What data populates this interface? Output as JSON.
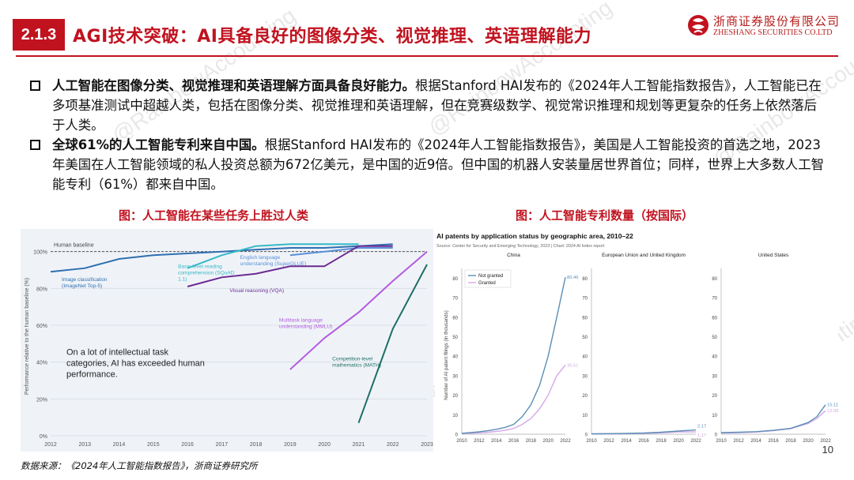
{
  "header": {
    "section_number": "2.1.3",
    "title": "AGI技术突破：AI具备良好的图像分类、视觉推理、英语理解能力",
    "logo_cn": "浙商证券股份有限公司",
    "logo_en": "ZHESHANG SECURITIES CO.LTD"
  },
  "bullets": [
    {
      "bold": "人工智能在图像分类、视觉推理和英语理解方面具备良好能力。",
      "text": "根据Stanford HAI发布的《2024年人工智能指数报告》，人工智能已在多项基准测试中超越人类，包括在图像分类、视觉推理和英语理解，但在竞赛级数学、视觉常识推理和规划等更复杂的任务上依然落后于人类。"
    },
    {
      "bold": "全球61%的人工智能专利来自中国。",
      "text": "根据Stanford HAI发布的《2024年人工智能指数报告》，美国是人工智能投资的首选之地，2023年美国在人工智能领域的私人投资总额为672亿美元，是中国的近9倍。但中国的机器人安装量居世界首位；同样，世界上大多数人工智能专利（61%）都来自中国。"
    }
  ],
  "captions": {
    "left": "图：人工智能在某些任务上胜过人类",
    "right": "图：人工智能专利数量（按国际）"
  },
  "footer": {
    "source": "数据来源：《2024年人工智能指数报告》，浙商证券研究所",
    "page_number": "10"
  },
  "watermark": "@RainbowAccounting",
  "chart_data": [
    {
      "type": "line",
      "xlabel": "",
      "ylabel": "Performance relative to the human baseline (%)",
      "x_ticks": [
        "2012",
        "2013",
        "2014",
        "2015",
        "2016",
        "2017",
        "2018",
        "2019",
        "2020",
        "2021",
        "2022",
        "2023"
      ],
      "y_ticks": [
        "0%",
        "20%",
        "40%",
        "60%",
        "80%",
        "100%"
      ],
      "ylim": [
        0,
        108
      ],
      "baseline": {
        "label": "Human baseline",
        "value": 100
      },
      "annotation": "On a lot of intellectual task categories, AI has exceeded human performance.",
      "series": [
        {
          "name": "Image classification (ImageNet Top-5)",
          "color": "#2f6fb0",
          "points": [
            [
              2012,
              89
            ],
            [
              2013,
              91
            ],
            [
              2014,
              96
            ],
            [
              2015,
              98
            ],
            [
              2016,
              99
            ],
            [
              2017,
              100
            ],
            [
              2018,
              101
            ],
            [
              2019,
              102
            ],
            [
              2020,
              102
            ],
            [
              2021,
              103
            ],
            [
              2022,
              104
            ]
          ]
        },
        {
          "name": "Basic-level reading comprehension (SQuAD 1.1)",
          "color": "#35b9c6",
          "points": [
            [
              2016,
              91
            ],
            [
              2017,
              98
            ],
            [
              2018,
              103
            ],
            [
              2019,
              104
            ],
            [
              2020,
              104
            ],
            [
              2021,
              104
            ]
          ]
        },
        {
          "name": "English language understanding (SuperGLUE)",
          "color": "#5a8fd6",
          "points": [
            [
              2019,
              98
            ],
            [
              2020,
              100
            ],
            [
              2021,
              102
            ],
            [
              2022,
              102
            ]
          ]
        },
        {
          "name": "Visual reasoning (VQA)",
          "color": "#6c2a93",
          "points": [
            [
              2016,
              81
            ],
            [
              2017,
              86
            ],
            [
              2018,
              88
            ],
            [
              2019,
              92
            ],
            [
              2020,
              92
            ],
            [
              2021,
              103
            ],
            [
              2022,
              103
            ]
          ]
        },
        {
          "name": "Multitask language understanding (MMLU)",
          "color": "#b45be0",
          "points": [
            [
              2019,
              36
            ],
            [
              2020,
              53
            ],
            [
              2021,
              67
            ],
            [
              2022,
              84
            ],
            [
              2023,
              100
            ]
          ]
        },
        {
          "name": "Competition-level mathematics (MATH)",
          "color": "#1e6e66",
          "points": [
            [
              2021,
              7
            ],
            [
              2022,
              58
            ],
            [
              2023,
              93
            ]
          ]
        }
      ]
    },
    {
      "type": "line",
      "title": "AI patents by application status by geographic area, 2010–22",
      "subtitle": "Source: Center for Security and Emerging Technology, 2023 | Chart: 2024 AI Index report",
      "ylabel": "Number of AI patent filings (in thousands)",
      "x_ticks": [
        "2010",
        "2012",
        "2014",
        "2016",
        "2018",
        "2020",
        "2022"
      ],
      "y_ticks": [
        "0",
        "10",
        "20",
        "30",
        "40",
        "50",
        "60",
        "70",
        "80"
      ],
      "ylim": [
        0,
        85
      ],
      "legend": [
        "Not granted",
        "Granted"
      ],
      "colors": {
        "not_granted": "#5b8fb7",
        "granted": "#d5a8e6"
      },
      "panels": [
        {
          "name": "China",
          "not_granted": [
            [
              2010,
              0.5
            ],
            [
              2011,
              0.8
            ],
            [
              2012,
              1.2
            ],
            [
              2013,
              1.8
            ],
            [
              2014,
              2.5
            ],
            [
              2015,
              3.5
            ],
            [
              2016,
              5
            ],
            [
              2017,
              9
            ],
            [
              2018,
              15
            ],
            [
              2019,
              25
            ],
            [
              2020,
              40
            ],
            [
              2021,
              60
            ],
            [
              2022,
              80.46
            ]
          ],
          "granted": [
            [
              2010,
              0.3
            ],
            [
              2011,
              0.5
            ],
            [
              2012,
              0.7
            ],
            [
              2013,
              1
            ],
            [
              2014,
              1.4
            ],
            [
              2015,
              2
            ],
            [
              2016,
              3
            ],
            [
              2017,
              5
            ],
            [
              2018,
              8
            ],
            [
              2019,
              13
            ],
            [
              2020,
              20
            ],
            [
              2021,
              30
            ],
            [
              2022,
              35.51
            ]
          ],
          "label_ng": "80.46",
          "label_g": "35.51"
        },
        {
          "name": "European Union and United Kingdom",
          "not_granted": [
            [
              2010,
              0.2
            ],
            [
              2012,
              0.3
            ],
            [
              2014,
              0.4
            ],
            [
              2016,
              0.6
            ],
            [
              2018,
              1
            ],
            [
              2020,
              1.6
            ],
            [
              2022,
              2.17
            ]
          ],
          "granted": [
            [
              2010,
              0.1
            ],
            [
              2012,
              0.2
            ],
            [
              2014,
              0.3
            ],
            [
              2016,
              0.4
            ],
            [
              2018,
              0.7
            ],
            [
              2020,
              1.2
            ],
            [
              2022,
              1.17
            ]
          ],
          "label_ng": "2.17",
          "label_g": "1.17"
        },
        {
          "name": "United States",
          "not_granted": [
            [
              2010,
              0.8
            ],
            [
              2012,
              1
            ],
            [
              2014,
              1.3
            ],
            [
              2016,
              2
            ],
            [
              2018,
              3
            ],
            [
              2020,
              6
            ],
            [
              2021,
              9
            ],
            [
              2022,
              15.11
            ]
          ],
          "granted": [
            [
              2010,
              0.6
            ],
            [
              2012,
              0.8
            ],
            [
              2014,
              1.1
            ],
            [
              2016,
              1.8
            ],
            [
              2018,
              2.8
            ],
            [
              2020,
              5.5
            ],
            [
              2021,
              8
            ],
            [
              2022,
              12.08
            ]
          ],
          "label_ng": "15.11",
          "label_g": "12.08"
        }
      ]
    }
  ]
}
